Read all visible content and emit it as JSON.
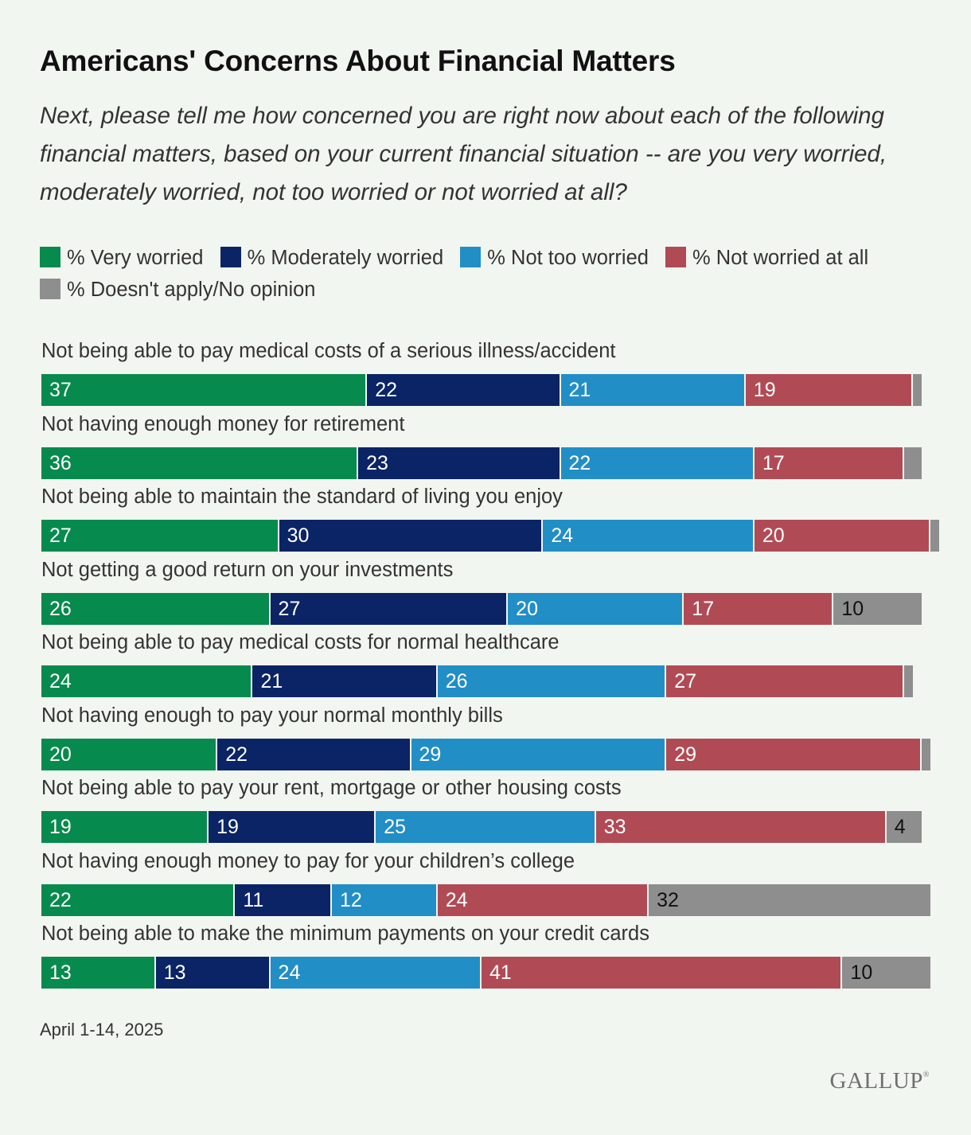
{
  "title": "Americans' Concerns About Financial Matters",
  "subtitle": "Next, please tell me how concerned you are right now about each of the following financial matters, based on your current financial situation -- are you very worried, moderately worried, not too worried or not worried at all?",
  "footnote": "April 1-14, 2025",
  "logo": "GALLUP",
  "chart_data": {
    "type": "bar",
    "orientation": "horizontal-stacked",
    "series": [
      {
        "name": "% Very worried",
        "color": "#078a4e",
        "values": [
          37,
          36,
          27,
          26,
          24,
          20,
          19,
          22,
          13
        ]
      },
      {
        "name": "% Moderately worried",
        "color": "#0a2465",
        "values": [
          22,
          23,
          30,
          27,
          21,
          22,
          19,
          11,
          13
        ]
      },
      {
        "name": "% Not too worried",
        "color": "#228ec6",
        "values": [
          21,
          22,
          24,
          20,
          26,
          29,
          25,
          12,
          24
        ]
      },
      {
        "name": "% Not worried at all",
        "color": "#b04b56",
        "values": [
          19,
          17,
          20,
          17,
          27,
          29,
          33,
          24,
          41
        ]
      },
      {
        "name": "% Doesn't apply/No opinion",
        "color": "#8e8e8e",
        "values": [
          1,
          2,
          1,
          10,
          1,
          1,
          4,
          32,
          10
        ]
      }
    ],
    "value_labels": [
      [
        "37",
        "22",
        "21",
        "19",
        ""
      ],
      [
        "36",
        "23",
        "22",
        "17",
        ""
      ],
      [
        "27",
        "30",
        "24",
        "20",
        ""
      ],
      [
        "26",
        "27",
        "20",
        "17",
        "10"
      ],
      [
        "24",
        "21",
        "26",
        "27",
        ""
      ],
      [
        "20",
        "22",
        "29",
        "29",
        ""
      ],
      [
        "19",
        "19",
        "25",
        "33",
        "4"
      ],
      [
        "22",
        "11",
        "12",
        "24",
        "32"
      ],
      [
        "13",
        "13",
        "24",
        "41",
        "10"
      ]
    ],
    "categories": [
      "Not being able to pay medical costs of a serious illness/accident",
      "Not having enough money for retirement",
      "Not being able to maintain the standard of living you enjoy",
      "Not getting a good return on your investments",
      "Not being able to pay medical costs for normal healthcare",
      "Not having enough to pay your normal monthly bills",
      "Not being able to pay your rent, mortgage or other housing costs",
      "Not having enough money to pay for your children’s college",
      "Not being able to make the minimum payments on your credit cards"
    ],
    "xlim": [
      0,
      100
    ],
    "legend_position": "top"
  }
}
